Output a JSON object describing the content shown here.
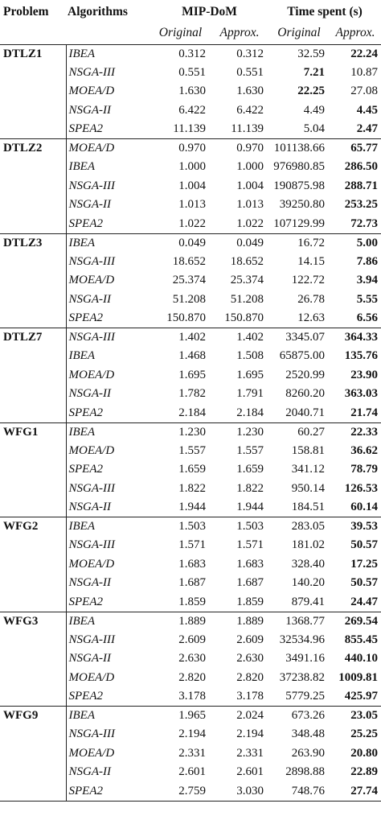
{
  "headers": {
    "problem": "Problem",
    "algorithms": "Algorithms",
    "mip_dom": "MIP-DoM",
    "time_spent": "Time spent (s)",
    "original": "Original",
    "approx": "Approx."
  },
  "groups": [
    {
      "problem": "DTLZ1",
      "rows": [
        {
          "alg": "IBEA",
          "mip_orig": "0.312",
          "mip_approx": "0.312",
          "time_orig": "32.59",
          "time_approx": "22.24",
          "bold": "approx"
        },
        {
          "alg": "NSGA-III",
          "mip_orig": "0.551",
          "mip_approx": "0.551",
          "time_orig": "7.21",
          "time_approx": "10.87",
          "bold": "orig"
        },
        {
          "alg": "MOEA/D",
          "mip_orig": "1.630",
          "mip_approx": "1.630",
          "time_orig": "22.25",
          "time_approx": "27.08",
          "bold": "orig"
        },
        {
          "alg": "NSGA-II",
          "mip_orig": "6.422",
          "mip_approx": "6.422",
          "time_orig": "4.49",
          "time_approx": "4.45",
          "bold": "approx"
        },
        {
          "alg": "SPEA2",
          "mip_orig": "11.139",
          "mip_approx": "11.139",
          "time_orig": "5.04",
          "time_approx": "2.47",
          "bold": "approx"
        }
      ]
    },
    {
      "problem": "DTLZ2",
      "rows": [
        {
          "alg": "MOEA/D",
          "mip_orig": "0.970",
          "mip_approx": "0.970",
          "time_orig": "101138.66",
          "time_approx": "65.77",
          "bold": "approx"
        },
        {
          "alg": "IBEA",
          "mip_orig": "1.000",
          "mip_approx": "1.000",
          "time_orig": "976980.85",
          "time_approx": "286.50",
          "bold": "approx"
        },
        {
          "alg": "NSGA-III",
          "mip_orig": "1.004",
          "mip_approx": "1.004",
          "time_orig": "190875.98",
          "time_approx": "288.71",
          "bold": "approx"
        },
        {
          "alg": "NSGA-II",
          "mip_orig": "1.013",
          "mip_approx": "1.013",
          "time_orig": "39250.80",
          "time_approx": "253.25",
          "bold": "approx"
        },
        {
          "alg": "SPEA2",
          "mip_orig": "1.022",
          "mip_approx": "1.022",
          "time_orig": "107129.99",
          "time_approx": "72.73",
          "bold": "approx"
        }
      ]
    },
    {
      "problem": "DTLZ3",
      "rows": [
        {
          "alg": "IBEA",
          "mip_orig": "0.049",
          "mip_approx": "0.049",
          "time_orig": "16.72",
          "time_approx": "5.00",
          "bold": "approx"
        },
        {
          "alg": "NSGA-III",
          "mip_orig": "18.652",
          "mip_approx": "18.652",
          "time_orig": "14.15",
          "time_approx": "7.86",
          "bold": "approx"
        },
        {
          "alg": "MOEA/D",
          "mip_orig": "25.374",
          "mip_approx": "25.374",
          "time_orig": "122.72",
          "time_approx": "3.94",
          "bold": "approx"
        },
        {
          "alg": "NSGA-II",
          "mip_orig": "51.208",
          "mip_approx": "51.208",
          "time_orig": "26.78",
          "time_approx": "5.55",
          "bold": "approx"
        },
        {
          "alg": "SPEA2",
          "mip_orig": "150.870",
          "mip_approx": "150.870",
          "time_orig": "12.63",
          "time_approx": "6.56",
          "bold": "approx"
        }
      ]
    },
    {
      "problem": "DTLZ7",
      "rows": [
        {
          "alg": "NSGA-III",
          "mip_orig": "1.402",
          "mip_approx": "1.402",
          "time_orig": "3345.07",
          "time_approx": "364.33",
          "bold": "approx"
        },
        {
          "alg": "IBEA",
          "mip_orig": "1.468",
          "mip_approx": "1.508",
          "time_orig": "65875.00",
          "time_approx": "135.76",
          "bold": "approx"
        },
        {
          "alg": "MOEA/D",
          "mip_orig": "1.695",
          "mip_approx": "1.695",
          "time_orig": "2520.99",
          "time_approx": "23.90",
          "bold": "approx"
        },
        {
          "alg": "NSGA-II",
          "mip_orig": "1.782",
          "mip_approx": "1.791",
          "time_orig": "8260.20",
          "time_approx": "363.03",
          "bold": "approx"
        },
        {
          "alg": "SPEA2",
          "mip_orig": "2.184",
          "mip_approx": "2.184",
          "time_orig": "2040.71",
          "time_approx": "21.74",
          "bold": "approx"
        }
      ]
    },
    {
      "problem": "WFG1",
      "rows": [
        {
          "alg": "IBEA",
          "mip_orig": "1.230",
          "mip_approx": "1.230",
          "time_orig": "60.27",
          "time_approx": "22.33",
          "bold": "approx"
        },
        {
          "alg": "MOEA/D",
          "mip_orig": "1.557",
          "mip_approx": "1.557",
          "time_orig": "158.81",
          "time_approx": "36.62",
          "bold": "approx"
        },
        {
          "alg": "SPEA2",
          "mip_orig": "1.659",
          "mip_approx": "1.659",
          "time_orig": "341.12",
          "time_approx": "78.79",
          "bold": "approx"
        },
        {
          "alg": "NSGA-III",
          "mip_orig": "1.822",
          "mip_approx": "1.822",
          "time_orig": "950.14",
          "time_approx": "126.53",
          "bold": "approx"
        },
        {
          "alg": "NSGA-II",
          "mip_orig": "1.944",
          "mip_approx": "1.944",
          "time_orig": "184.51",
          "time_approx": "60.14",
          "bold": "approx"
        }
      ]
    },
    {
      "problem": "WFG2",
      "rows": [
        {
          "alg": "IBEA",
          "mip_orig": "1.503",
          "mip_approx": "1.503",
          "time_orig": "283.05",
          "time_approx": "39.53",
          "bold": "approx"
        },
        {
          "alg": "NSGA-III",
          "mip_orig": "1.571",
          "mip_approx": "1.571",
          "time_orig": "181.02",
          "time_approx": "50.57",
          "bold": "approx"
        },
        {
          "alg": "MOEA/D",
          "mip_orig": "1.683",
          "mip_approx": "1.683",
          "time_orig": "328.40",
          "time_approx": "17.25",
          "bold": "approx"
        },
        {
          "alg": "NSGA-II",
          "mip_orig": "1.687",
          "mip_approx": "1.687",
          "time_orig": "140.20",
          "time_approx": "50.57",
          "bold": "approx"
        },
        {
          "alg": "SPEA2",
          "mip_orig": "1.859",
          "mip_approx": "1.859",
          "time_orig": "879.41",
          "time_approx": "24.47",
          "bold": "approx"
        }
      ]
    },
    {
      "problem": "WFG3",
      "rows": [
        {
          "alg": "IBEA",
          "mip_orig": "1.889",
          "mip_approx": "1.889",
          "time_orig": "1368.77",
          "time_approx": "269.54",
          "bold": "approx"
        },
        {
          "alg": "NSGA-III",
          "mip_orig": "2.609",
          "mip_approx": "2.609",
          "time_orig": "32534.96",
          "time_approx": "855.45",
          "bold": "approx"
        },
        {
          "alg": "NSGA-II",
          "mip_orig": "2.630",
          "mip_approx": "2.630",
          "time_orig": "3491.16",
          "time_approx": "440.10",
          "bold": "approx"
        },
        {
          "alg": "MOEA/D",
          "mip_orig": "2.820",
          "mip_approx": "2.820",
          "time_orig": "37238.82",
          "time_approx": "1009.81",
          "bold": "approx"
        },
        {
          "alg": "SPEA2",
          "mip_orig": "3.178",
          "mip_approx": "3.178",
          "time_orig": "5779.25",
          "time_approx": "425.97",
          "bold": "approx"
        }
      ]
    },
    {
      "problem": "WFG9",
      "rows": [
        {
          "alg": "IBEA",
          "mip_orig": "1.965",
          "mip_approx": "2.024",
          "time_orig": "673.26",
          "time_approx": "23.05",
          "bold": "approx"
        },
        {
          "alg": "NSGA-III",
          "mip_orig": "2.194",
          "mip_approx": "2.194",
          "time_orig": "348.48",
          "time_approx": "25.25",
          "bold": "approx"
        },
        {
          "alg": "MOEA/D",
          "mip_orig": "2.331",
          "mip_approx": "2.331",
          "time_orig": "263.90",
          "time_approx": "20.80",
          "bold": "approx"
        },
        {
          "alg": "NSGA-II",
          "mip_orig": "2.601",
          "mip_approx": "2.601",
          "time_orig": "2898.88",
          "time_approx": "22.89",
          "bold": "approx"
        },
        {
          "alg": "SPEA2",
          "mip_orig": "2.759",
          "mip_approx": "3.030",
          "time_orig": "748.76",
          "time_approx": "27.74",
          "bold": "approx"
        }
      ]
    }
  ]
}
